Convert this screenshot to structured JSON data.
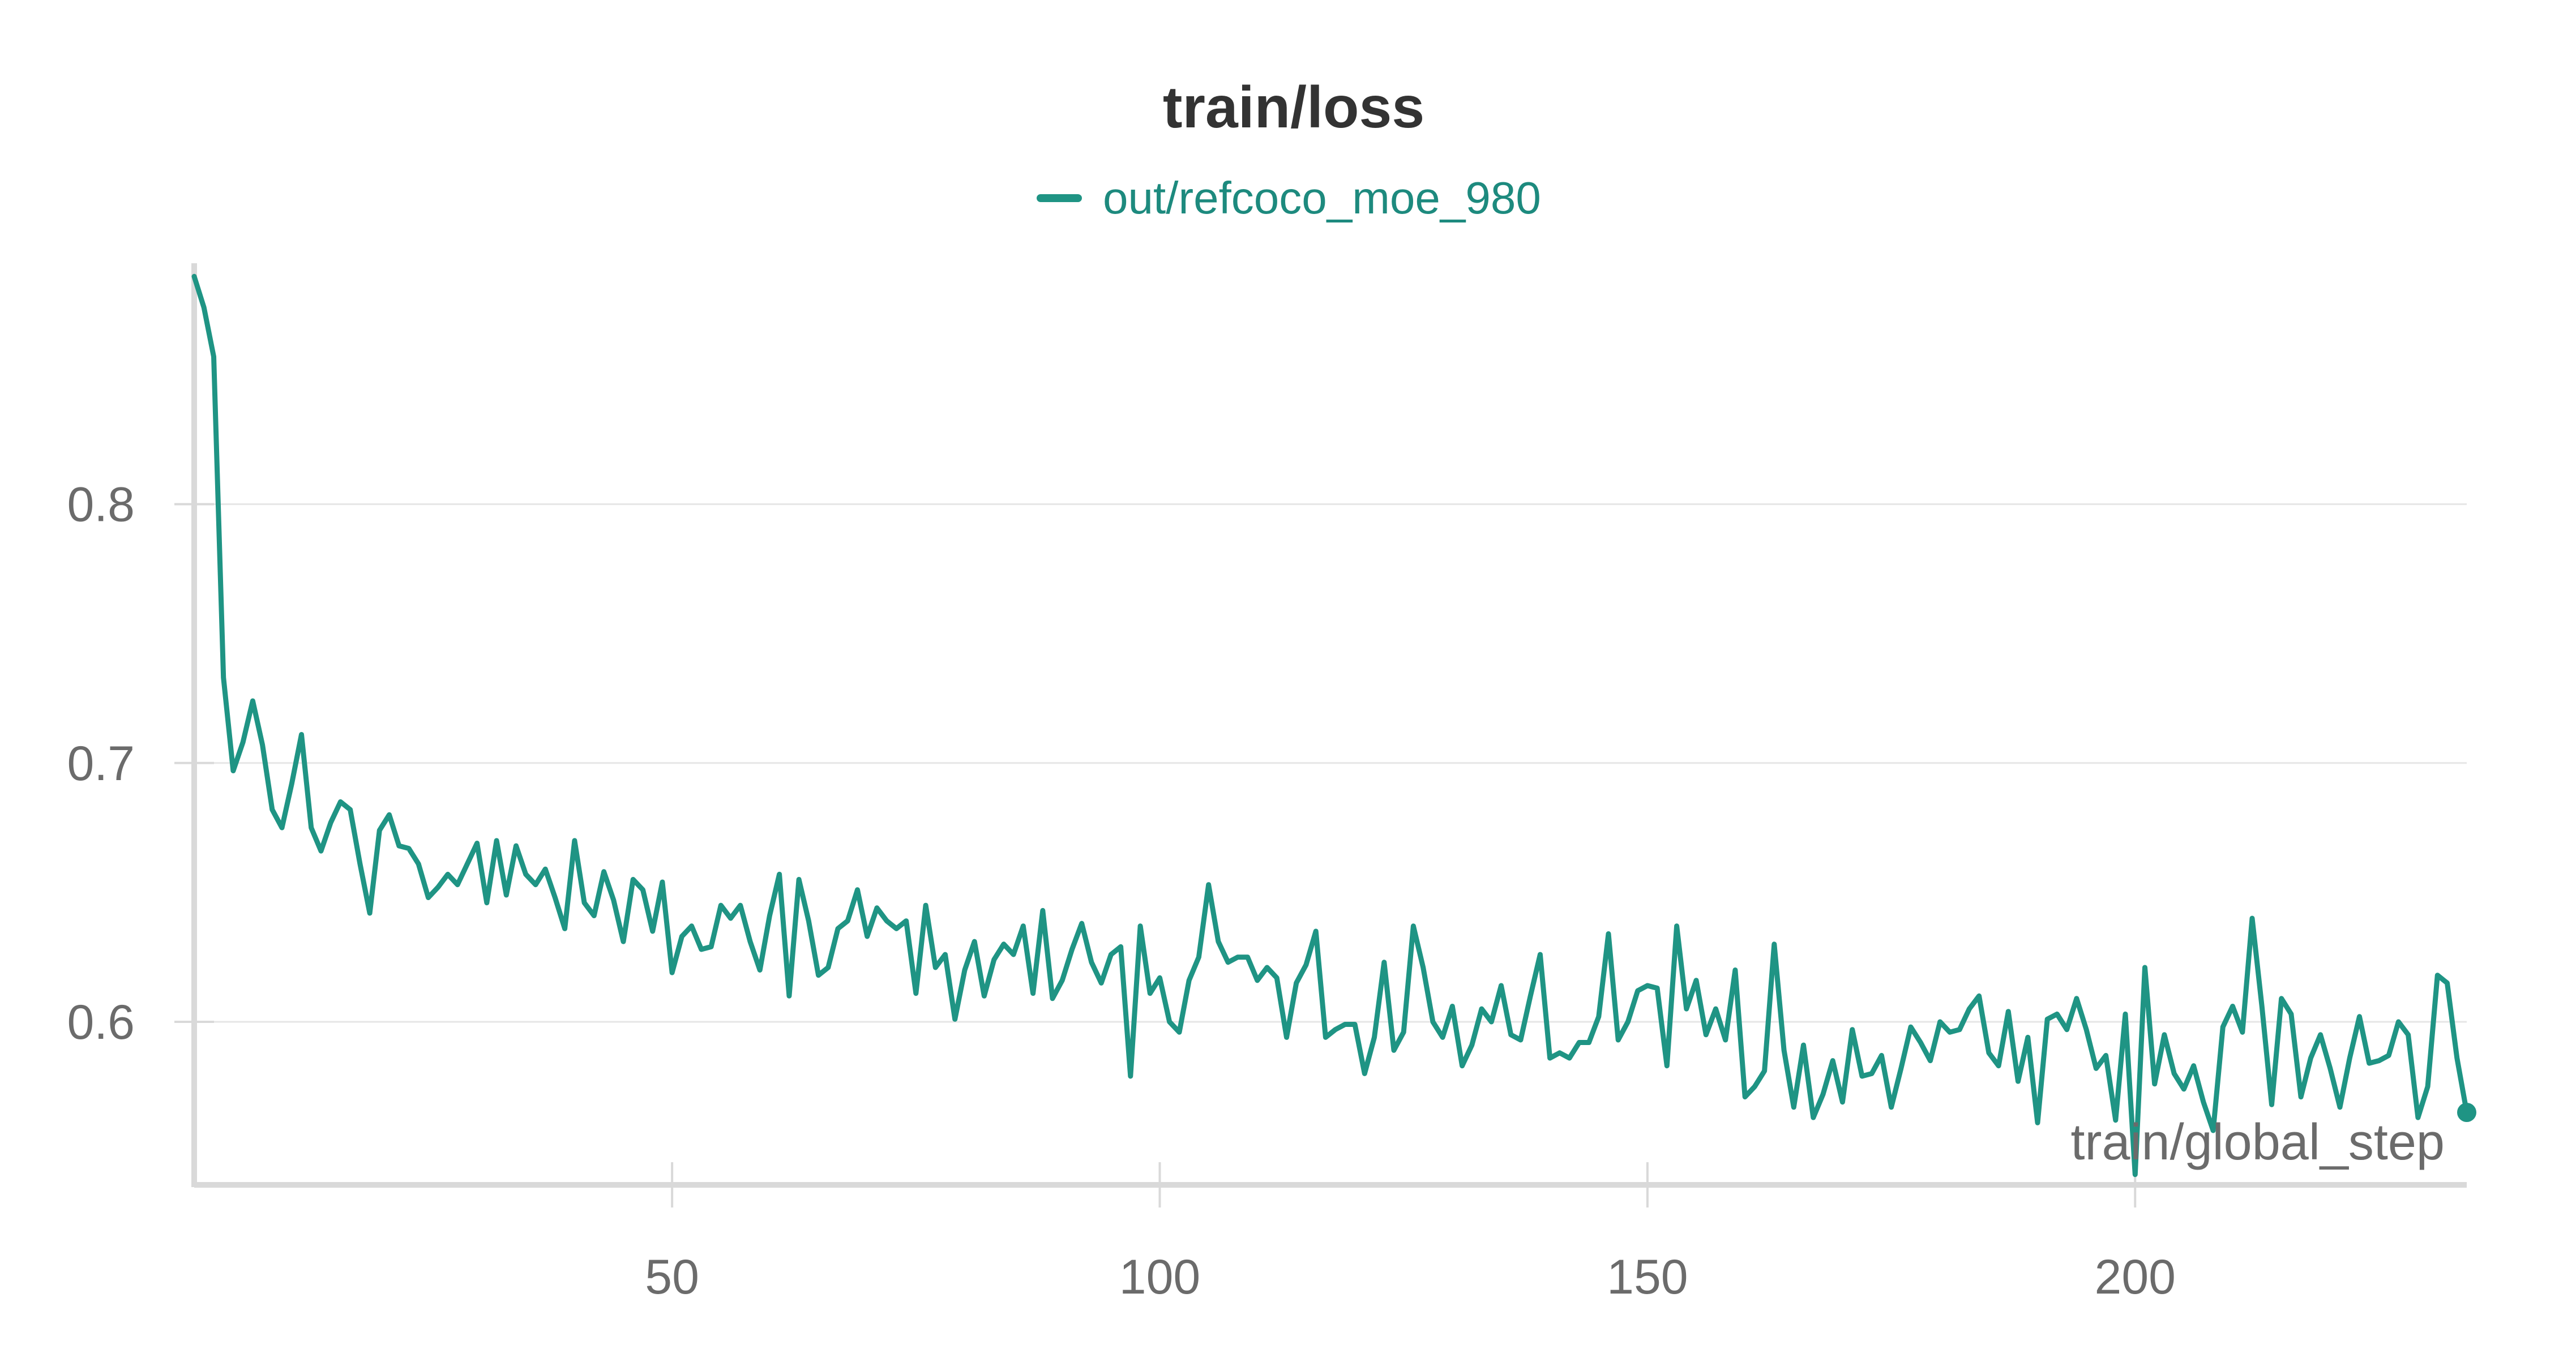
{
  "colors": {
    "series": "#1f9484",
    "legend_text": "#1d8a7e",
    "title": "#333333",
    "tick_text": "#6b6b6b",
    "grid": "#e6e6e6",
    "axis": "#d9d9d9"
  },
  "chart_data": {
    "type": "line",
    "title": "train/loss",
    "xlabel": "train/global_step",
    "ylabel": "",
    "xlim": [
      1,
      234
    ],
    "ylim": [
      0.537,
      0.892
    ],
    "xticks": [
      50,
      100,
      150,
      200
    ],
    "yticks": [
      0.6,
      0.7,
      0.8
    ],
    "ytick_labels": [
      "0.6",
      "0.7",
      "0.8"
    ],
    "xtick_labels": [
      "50",
      "100",
      "150",
      "200"
    ],
    "grid": "horizontal",
    "legend_position": "top-center",
    "series": [
      {
        "name": "out/refcoco_moe_980",
        "x": [
          1,
          2,
          3,
          4,
          5,
          6,
          7,
          8,
          9,
          10,
          11,
          12,
          13,
          14,
          15,
          16,
          17,
          18,
          19,
          20,
          21,
          22,
          23,
          24,
          25,
          26,
          27,
          28,
          29,
          30,
          31,
          32,
          33,
          34,
          35,
          36,
          37,
          38,
          39,
          40,
          41,
          42,
          43,
          44,
          45,
          46,
          47,
          48,
          49,
          50,
          51,
          52,
          53,
          54,
          55,
          56,
          57,
          58,
          59,
          60,
          61,
          62,
          63,
          64,
          65,
          66,
          67,
          68,
          69,
          70,
          71,
          72,
          73,
          74,
          75,
          76,
          77,
          78,
          79,
          80,
          81,
          82,
          83,
          84,
          85,
          86,
          87,
          88,
          89,
          90,
          91,
          92,
          93,
          94,
          95,
          96,
          97,
          98,
          99,
          100,
          101,
          102,
          103,
          104,
          105,
          106,
          107,
          108,
          109,
          110,
          111,
          112,
          113,
          114,
          115,
          116,
          117,
          118,
          119,
          120,
          121,
          122,
          123,
          124,
          125,
          126,
          127,
          128,
          129,
          130,
          131,
          132,
          133,
          134,
          135,
          136,
          137,
          138,
          139,
          140,
          141,
          142,
          143,
          144,
          145,
          146,
          147,
          148,
          149,
          150,
          151,
          152,
          153,
          154,
          155,
          156,
          157,
          158,
          159,
          160,
          161,
          162,
          163,
          164,
          165,
          166,
          167,
          168,
          169,
          170,
          171,
          172,
          173,
          174,
          175,
          176,
          177,
          178,
          179,
          180,
          181,
          182,
          183,
          184,
          185,
          186,
          187,
          188,
          189,
          190,
          191,
          192,
          193,
          194,
          195,
          196,
          197,
          198,
          199,
          200,
          201,
          202,
          203,
          204,
          205,
          206,
          207,
          208,
          209,
          210,
          211,
          212,
          213,
          214,
          215,
          216,
          217,
          218,
          219,
          220,
          221,
          222,
          223,
          224,
          225,
          226,
          227,
          228,
          229,
          230,
          231,
          232,
          233,
          234
        ],
        "values": [
          0.888,
          0.876,
          0.857,
          0.733,
          0.697,
          0.708,
          0.724,
          0.707,
          0.682,
          0.675,
          0.692,
          0.711,
          0.675,
          0.666,
          0.677,
          0.685,
          0.682,
          0.661,
          0.642,
          0.674,
          0.68,
          0.668,
          0.667,
          0.661,
          0.648,
          0.652,
          0.657,
          0.653,
          0.661,
          0.669,
          0.646,
          0.67,
          0.649,
          0.668,
          0.657,
          0.653,
          0.659,
          0.648,
          0.636,
          0.67,
          0.646,
          0.641,
          0.658,
          0.647,
          0.631,
          0.655,
          0.651,
          0.635,
          0.654,
          0.619,
          0.633,
          0.637,
          0.628,
          0.629,
          0.645,
          0.64,
          0.645,
          0.631,
          0.62,
          0.641,
          0.657,
          0.61,
          0.655,
          0.639,
          0.618,
          0.621,
          0.636,
          0.639,
          0.651,
          0.633,
          0.644,
          0.639,
          0.636,
          0.639,
          0.611,
          0.645,
          0.621,
          0.626,
          0.601,
          0.62,
          0.631,
          0.61,
          0.624,
          0.63,
          0.626,
          0.637,
          0.611,
          0.643,
          0.609,
          0.616,
          0.628,
          0.638,
          0.623,
          0.615,
          0.626,
          0.629,
          0.579,
          0.637,
          0.611,
          0.617,
          0.6,
          0.596,
          0.616,
          0.625,
          0.653,
          0.631,
          0.623,
          0.625,
          0.625,
          0.616,
          0.621,
          0.617,
          0.594,
          0.615,
          0.622,
          0.635,
          0.594,
          0.597,
          0.599,
          0.599,
          0.58,
          0.594,
          0.623,
          0.589,
          0.596,
          0.637,
          0.621,
          0.6,
          0.594,
          0.606,
          0.583,
          0.591,
          0.605,
          0.6,
          0.614,
          0.595,
          0.593,
          0.61,
          0.626,
          0.586,
          0.588,
          0.586,
          0.592,
          0.592,
          0.602,
          0.634,
          0.593,
          0.6,
          0.612,
          0.614,
          0.613,
          0.583,
          0.637,
          0.605,
          0.616,
          0.595,
          0.605,
          0.593,
          0.62,
          0.571,
          0.575,
          0.581,
          0.63,
          0.589,
          0.567,
          0.591,
          0.563,
          0.572,
          0.585,
          0.569,
          0.597,
          0.579,
          0.58,
          0.587,
          0.567,
          0.582,
          0.598,
          0.592,
          0.585,
          0.6,
          0.596,
          0.597,
          0.605,
          0.61,
          0.588,
          0.583,
          0.604,
          0.577,
          0.594,
          0.561,
          0.601,
          0.603,
          0.597,
          0.609,
          0.597,
          0.582,
          0.587,
          0.562,
          0.603,
          0.541,
          0.621,
          0.576,
          0.595,
          0.58,
          0.574,
          0.583,
          0.569,
          0.558,
          0.598,
          0.606,
          0.596,
          0.64,
          0.606,
          0.568,
          0.609,
          0.603,
          0.571,
          0.586,
          0.595,
          0.582,
          0.567,
          0.586,
          0.602,
          0.584,
          0.585,
          0.587,
          0.6,
          0.595,
          0.563,
          0.575,
          0.618,
          0.615,
          0.586,
          0.565
        ]
      }
    ]
  }
}
